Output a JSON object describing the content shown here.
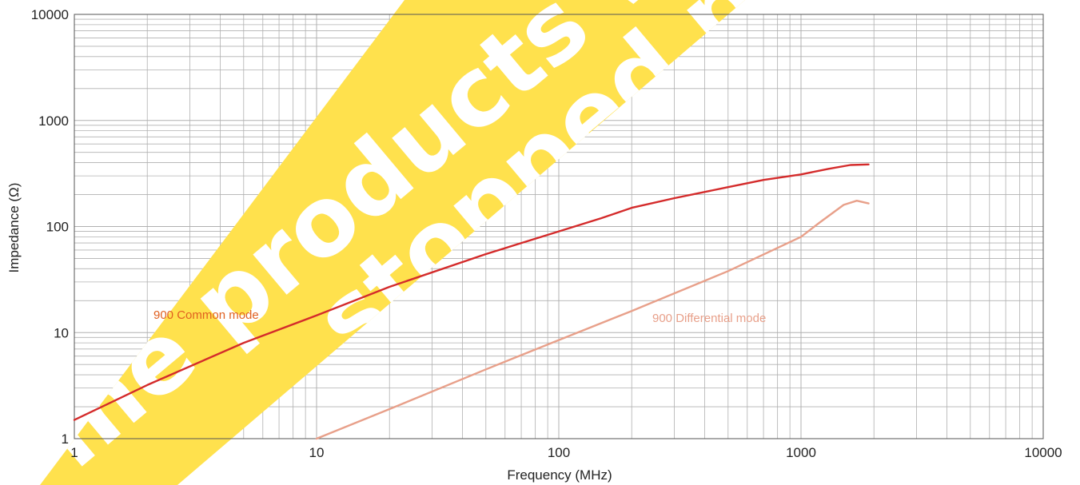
{
  "chart_data": {
    "type": "line",
    "xlabel": "Frequency (MHz)",
    "ylabel": "Impedance (Ω)",
    "x_scale": "log",
    "y_scale": "log",
    "xlim": [
      1,
      10000
    ],
    "ylim": [
      1,
      10000
    ],
    "x_ticks": [
      "1",
      "10",
      "100",
      "1000",
      "10000"
    ],
    "y_ticks": [
      "1",
      "10",
      "100",
      "1000",
      "10000"
    ],
    "grid": true,
    "legend": "none",
    "series": [
      {
        "name": "900 Common mode",
        "color": "#d42b2b",
        "x": [
          1,
          2,
          5,
          10,
          20,
          50,
          100,
          150,
          200,
          300,
          500,
          700,
          1000,
          1300,
          1600,
          1900
        ],
        "y": [
          1.5,
          3.2,
          8,
          14.5,
          27,
          55,
          90,
          120,
          150,
          185,
          235,
          275,
          310,
          350,
          380,
          385
        ]
      },
      {
        "name": "900 Differential mode",
        "color": "#e8a08a",
        "x": [
          10,
          20,
          50,
          100,
          200,
          500,
          1000,
          1200,
          1500,
          1700,
          1900
        ],
        "y": [
          1,
          1.9,
          4.5,
          8.5,
          16,
          38,
          80,
          110,
          160,
          175,
          165
        ]
      }
    ],
    "annotations": [
      "900 Common mode",
      "900 Differential mode"
    ]
  },
  "colors": {
    "band": "#ffe14d",
    "gridline": "#b0b0b0",
    "common_mode": "#d42b2b",
    "differential_mode": "#e8a08a",
    "common_label": "#e06020",
    "differential_label": "#e8a08a"
  }
}
